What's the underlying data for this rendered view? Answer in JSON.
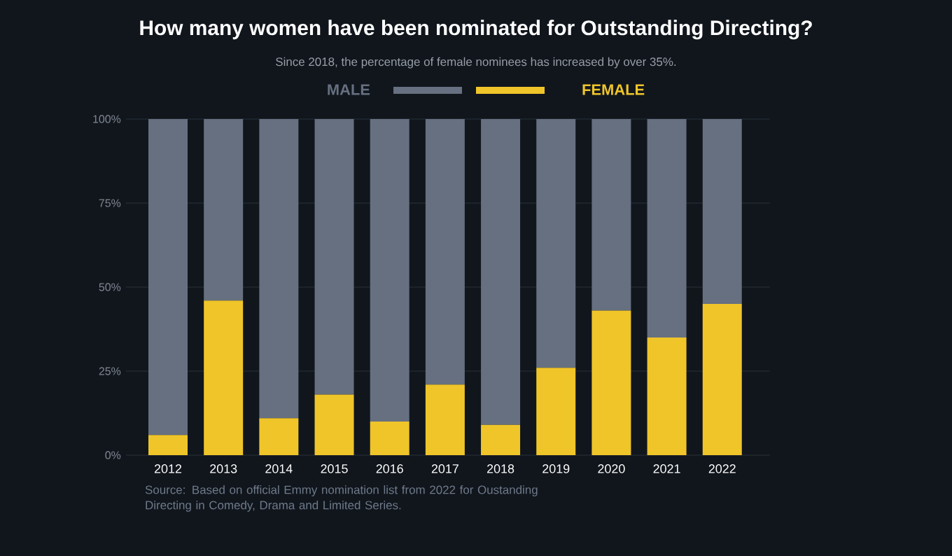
{
  "chart_data": {
    "type": "bar",
    "stacked": true,
    "title": "How many women have been nominated for Outstanding Directing?",
    "subtitle": "Since 2018, the percentage of female nominees has increased by over 35%.",
    "categories": [
      "2012",
      "2013",
      "2014",
      "2015",
      "2016",
      "2017",
      "2018",
      "2019",
      "2020",
      "2021",
      "2022"
    ],
    "series": [
      {
        "name": "FEMALE",
        "color": "#f0c52a",
        "values": [
          6,
          46,
          11,
          18,
          10,
          21,
          9,
          26,
          43,
          35,
          45
        ]
      },
      {
        "name": "MALE",
        "color": "#667080",
        "values": [
          94,
          54,
          89,
          82,
          90,
          79,
          91,
          74,
          57,
          65,
          55
        ]
      }
    ],
    "ylim": [
      0,
      100
    ],
    "yticks": [
      {
        "value": 0,
        "label": "0%"
      },
      {
        "value": 25,
        "label": "25%"
      },
      {
        "value": 50,
        "label": "50%"
      },
      {
        "value": 75,
        "label": "75%"
      },
      {
        "value": 100,
        "label": "100%"
      }
    ],
    "grid": "y",
    "legend": "top",
    "annotations": [
      "Source: Based on official Emmy nomination list from 2022 for Oustanding Directing in Comedy, Drama and Limited Series."
    ]
  }
}
